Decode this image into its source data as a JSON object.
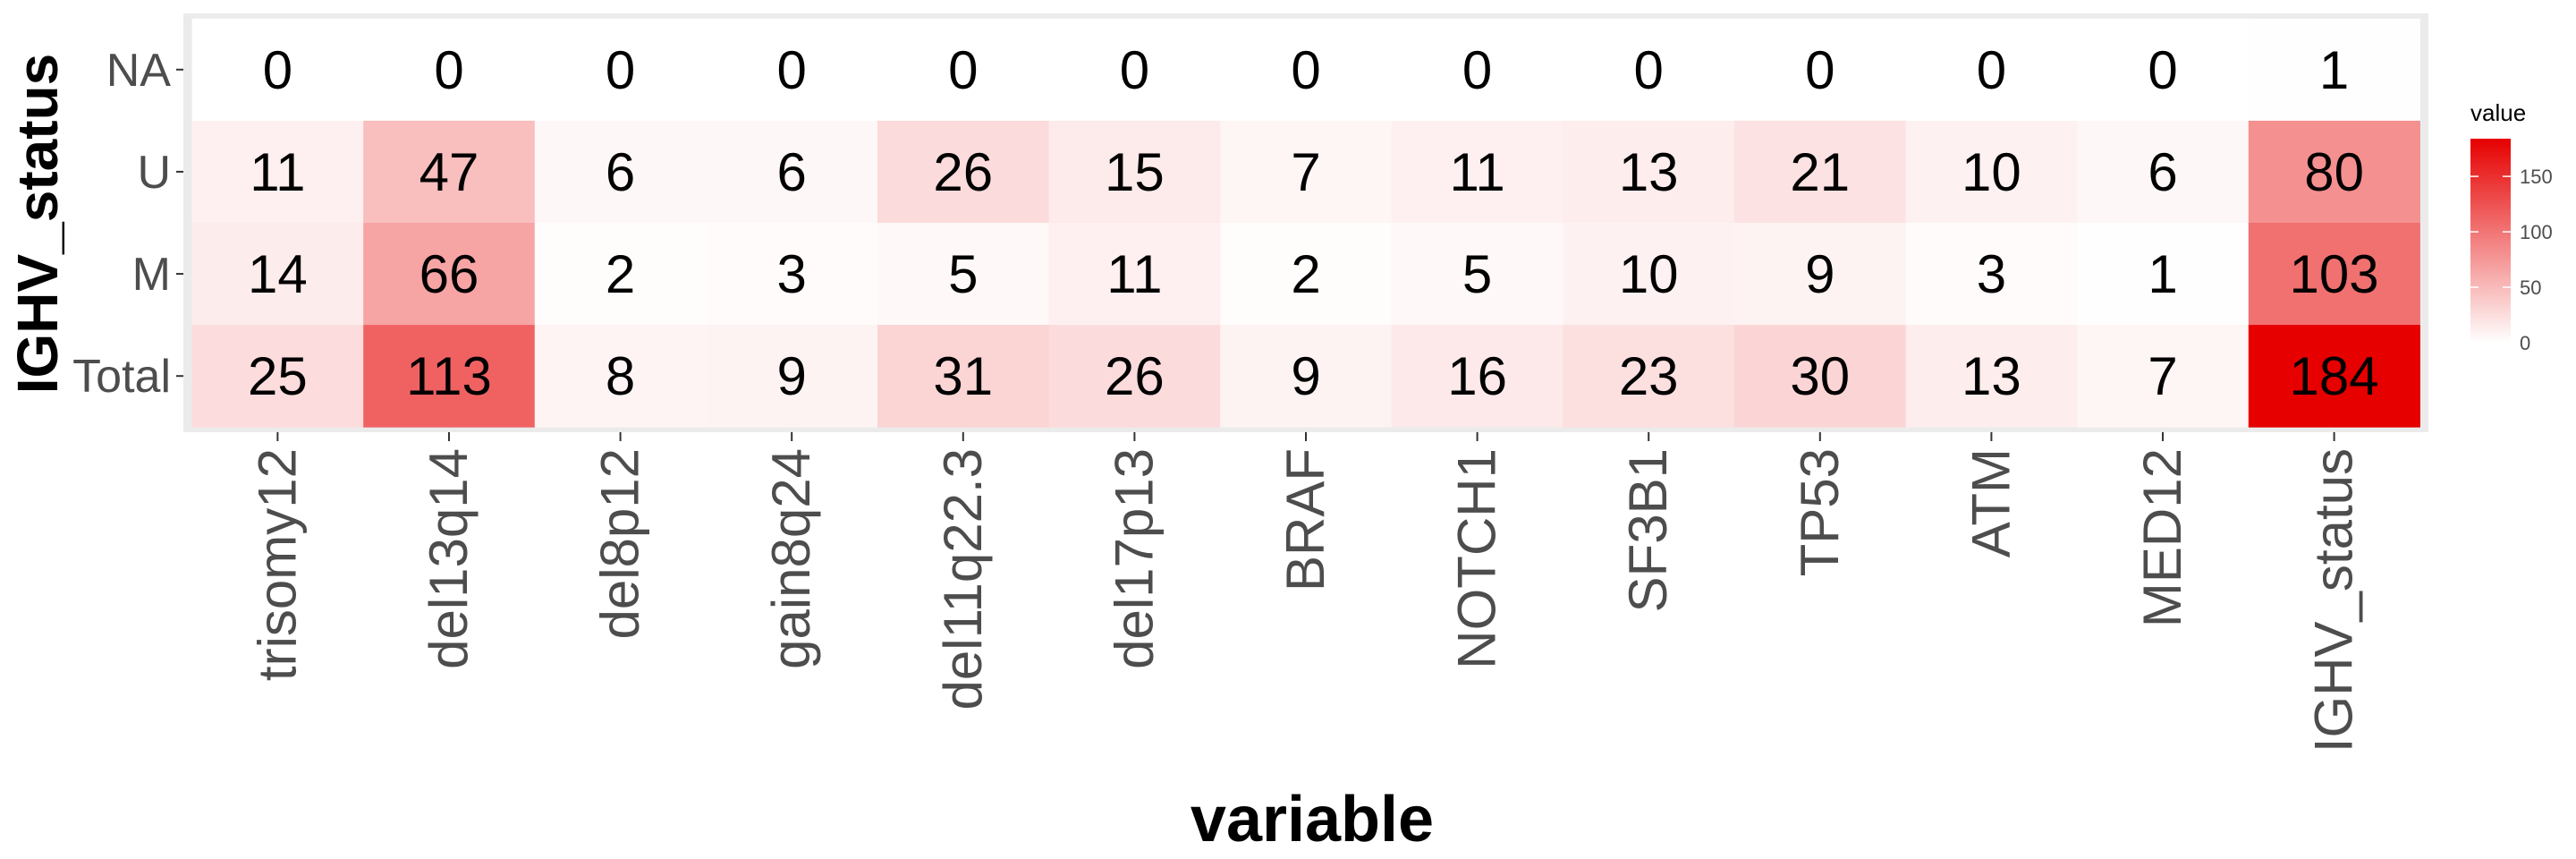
{
  "chart_data": {
    "type": "heatmap",
    "xlabel": "variable",
    "ylabel": "IGHV_status",
    "x_categories": [
      "trisomy12",
      "del13q14",
      "del8p12",
      "gain8q24",
      "del11q22.3",
      "del17p13",
      "BRAF",
      "NOTCH1",
      "SF3B1",
      "TP53",
      "ATM",
      "MED12",
      "IGHV_status"
    ],
    "y_categories": [
      "NA",
      "U",
      "M",
      "Total"
    ],
    "values": [
      [
        0,
        0,
        0,
        0,
        0,
        0,
        0,
        0,
        0,
        0,
        0,
        0,
        1
      ],
      [
        11,
        47,
        6,
        6,
        26,
        15,
        7,
        11,
        13,
        21,
        10,
        6,
        80
      ],
      [
        14,
        66,
        2,
        3,
        5,
        11,
        2,
        5,
        10,
        9,
        3,
        1,
        103
      ],
      [
        25,
        113,
        8,
        9,
        31,
        26,
        9,
        16,
        23,
        30,
        13,
        7,
        184
      ]
    ],
    "legend": {
      "title": "value",
      "ticks": [
        0,
        50,
        100,
        150
      ],
      "range": [
        0,
        184
      ],
      "position": "right"
    },
    "colors": {
      "low": "#ffffff",
      "high": "#e60000",
      "panel_background": "#ebebeb"
    }
  }
}
